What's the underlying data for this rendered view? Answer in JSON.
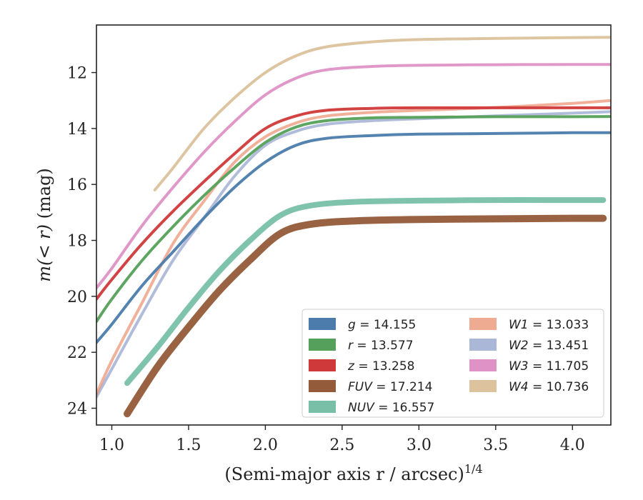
{
  "chart_data": {
    "type": "line",
    "xlabel": "(Semi-major axis r / arcsec)",
    "xlabel_exponent": "1/4",
    "ylabel_math": "m(< r)",
    "ylabel_unit": " (mag)",
    "xlim": [
      0.9,
      4.25
    ],
    "ylim": [
      24.6,
      10.3
    ],
    "y_inverted": true,
    "grid": false,
    "legend_position": "bottom-right",
    "xticks": [
      {
        "value": 1.0,
        "label": "1.0"
      },
      {
        "value": 1.5,
        "label": "1.5"
      },
      {
        "value": 2.0,
        "label": "2.0"
      },
      {
        "value": 2.5,
        "label": "2.5"
      },
      {
        "value": 3.0,
        "label": "3.0"
      },
      {
        "value": 3.5,
        "label": "3.5"
      },
      {
        "value": 4.0,
        "label": "4.0"
      }
    ],
    "yticks": [
      {
        "value": 12,
        "label": "12"
      },
      {
        "value": 14,
        "label": "14"
      },
      {
        "value": 16,
        "label": "16"
      },
      {
        "value": 18,
        "label": "18"
      },
      {
        "value": 20,
        "label": "20"
      },
      {
        "value": 22,
        "label": "22"
      },
      {
        "value": 24,
        "label": "24"
      }
    ],
    "series": [
      {
        "name": "g",
        "value": "14.155",
        "color": "#4c7cab",
        "band": 4,
        "opacity": 0.95,
        "x": [
          0.9,
          1.0,
          1.2,
          1.4,
          1.6,
          1.8,
          2.0,
          2.2,
          2.4,
          2.7,
          3.0,
          3.5,
          4.0,
          4.25
        ],
        "y": [
          21.65,
          21.0,
          19.6,
          18.4,
          17.2,
          16.1,
          15.2,
          14.6,
          14.35,
          14.25,
          14.2,
          14.18,
          14.15,
          14.15
        ]
      },
      {
        "name": "r",
        "value": "13.577",
        "color": "#55a05a",
        "band": 4,
        "opacity": 0.95,
        "x": [
          0.9,
          1.0,
          1.2,
          1.4,
          1.6,
          1.8,
          2.0,
          2.2,
          2.4,
          2.7,
          3.0,
          3.5,
          4.0,
          4.25
        ],
        "y": [
          20.9,
          20.1,
          18.7,
          17.5,
          16.4,
          15.4,
          14.5,
          13.95,
          13.72,
          13.62,
          13.6,
          13.58,
          13.58,
          13.57
        ]
      },
      {
        "name": "z",
        "value": "13.258",
        "color": "#d0393a",
        "band": 4,
        "opacity": 0.95,
        "x": [
          0.9,
          1.0,
          1.2,
          1.4,
          1.6,
          1.8,
          2.0,
          2.2,
          2.4,
          2.7,
          3.0,
          3.5,
          4.0,
          4.25
        ],
        "y": [
          20.1,
          19.4,
          18.1,
          16.95,
          15.9,
          14.9,
          14.0,
          13.55,
          13.35,
          13.28,
          13.26,
          13.26,
          13.26,
          13.26
        ]
      },
      {
        "name": "FUV",
        "value": "17.214",
        "color": "#935b39",
        "band": 10,
        "opacity": 0.95,
        "x": [
          1.1,
          1.3,
          1.5,
          1.7,
          1.9,
          2.1,
          2.3,
          2.6,
          3.0,
          3.5,
          4.0,
          4.2
        ],
        "y": [
          24.2,
          22.5,
          21.1,
          19.8,
          18.7,
          17.75,
          17.42,
          17.3,
          17.25,
          17.23,
          17.21,
          17.21
        ]
      },
      {
        "name": "NUV",
        "value": "16.557",
        "color": "#6ab89f",
        "band": 8,
        "opacity": 0.85,
        "x": [
          1.1,
          1.3,
          1.5,
          1.7,
          1.9,
          2.1,
          2.3,
          2.6,
          3.0,
          3.5,
          4.0,
          4.2
        ],
        "y": [
          23.1,
          21.8,
          20.4,
          19.1,
          18.0,
          17.1,
          16.75,
          16.62,
          16.58,
          16.56,
          16.56,
          16.56
        ]
      },
      {
        "name": "W1",
        "value": "13.033",
        "color": "#e98f6e",
        "band": 4,
        "opacity": 0.7,
        "x": [
          0.9,
          1.0,
          1.2,
          1.4,
          1.6,
          1.8,
          2.0,
          2.2,
          2.4,
          2.7,
          3.0,
          3.5,
          4.0,
          4.25
        ],
        "y": [
          23.5,
          22.3,
          20.2,
          18.1,
          16.6,
          15.2,
          14.3,
          13.8,
          13.55,
          13.42,
          13.35,
          13.25,
          13.1,
          13.0
        ]
      },
      {
        "name": "W2",
        "value": "13.451",
        "color": "#8f9fc9",
        "band": 4,
        "opacity": 0.7,
        "x": [
          0.9,
          1.0,
          1.2,
          1.4,
          1.6,
          1.8,
          2.0,
          2.2,
          2.4,
          2.7,
          3.0,
          3.5,
          4.0,
          4.25
        ],
        "y": [
          23.6,
          22.6,
          20.6,
          18.7,
          17.2,
          15.7,
          14.6,
          14.1,
          13.85,
          13.72,
          13.65,
          13.55,
          13.45,
          13.4
        ]
      },
      {
        "name": "W3",
        "value": "11.705",
        "color": "#de92c6",
        "band": 4,
        "opacity": 0.95,
        "x": [
          0.9,
          1.0,
          1.2,
          1.4,
          1.6,
          1.8,
          2.0,
          2.2,
          2.4,
          2.7,
          3.0,
          3.5,
          4.0,
          4.25
        ],
        "y": [
          19.7,
          19.0,
          17.45,
          16.1,
          14.85,
          13.75,
          12.8,
          12.2,
          11.9,
          11.78,
          11.74,
          11.72,
          11.71,
          11.71
        ]
      },
      {
        "name": "W4",
        "value": "10.736",
        "color": "#dcc29d",
        "band": 4,
        "opacity": 0.95,
        "x": [
          1.28,
          1.4,
          1.6,
          1.8,
          2.0,
          2.2,
          2.4,
          2.7,
          3.0,
          3.5,
          4.0,
          4.25
        ],
        "y": [
          16.2,
          15.4,
          14.0,
          12.9,
          12.0,
          11.4,
          11.08,
          10.9,
          10.82,
          10.78,
          10.75,
          10.74
        ]
      }
    ],
    "legend_columns": [
      [
        "g",
        "r",
        "z",
        "FUV",
        "NUV"
      ],
      [
        "W1",
        "W2",
        "W3",
        "W4"
      ]
    ]
  }
}
